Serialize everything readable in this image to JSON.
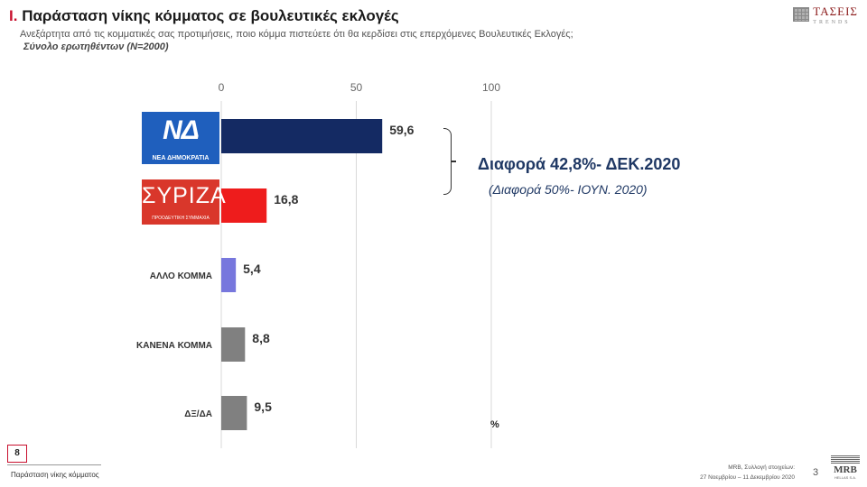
{
  "header": {
    "title_num": "I.",
    "title": "Παράσταση νίκης κόμματος σε βουλευτικές εκλογές",
    "subtitle": "Ανεξάρτητα από τις κομματικές σας προτιμήσεις, ποιο κόμμα πιστεύετε ότι θα κερδίσει στις επερχόμενες Βουλευτικές Εκλογές;",
    "base": "Σύνολο ερωτηθέντων (N=2000)"
  },
  "brand": {
    "name": "ΤΑΣΕΙΣ",
    "sub": "TRENDS"
  },
  "logos": {
    "nd_big": "ΝΔ",
    "nd_small": "ΝΕΑ ΔΗΜΟΚΡΑΤΙΑ",
    "syriza_big": "ΣΥΡΙΖΑ",
    "syriza_small": "ΠΡΟΟΔΕΥΤΙΚΗ ΣΥΜΜΑΧΙΑ"
  },
  "chart_data": {
    "type": "bar",
    "orientation": "horizontal",
    "categories": [
      "ΝΕΑ ΔΗΜΟΚΡΑΤΙΑ",
      "ΣΥΡΙΖΑ",
      "ΑΛΛΟ ΚΟΜΜΑ",
      "ΚΑΝΕΝΑ ΚΟΜΜΑ",
      "ΔΞ/ΔΑ"
    ],
    "category_labels": [
      "",
      "",
      "ΑΛΛΟ ΚΟΜΜΑ",
      "ΚΑΝΕΝΑ ΚΟΜΜΑ",
      "ΔΞ/ΔΑ"
    ],
    "values": [
      59.6,
      16.8,
      5.4,
      8.8,
      9.5
    ],
    "value_labels": [
      "59,6",
      "16,8",
      "5,4",
      "8,8",
      "9,5"
    ],
    "colors": [
      "#142a63",
      "#ee1c1c",
      "#7777dd",
      "#808080",
      "#808080"
    ],
    "xlim": [
      0,
      100
    ],
    "xticks": [
      0,
      50,
      100
    ],
    "tick_labels": [
      "0",
      "50",
      "100"
    ],
    "unit": "%",
    "grid": true
  },
  "annotation": {
    "diff_main": "Διαφορά 42,8%- ΔΕΚ.2020",
    "diff_prev": "(Διαφορά 50%- ΙΟΥΝ. 2020)"
  },
  "footer": {
    "page_box": "8",
    "section": "Παράσταση νίκης κόμματος",
    "source_line1": "MRB, Συλλογή στοιχείων:",
    "source_line2": "27 Νοεμβρίου – 11 Δεκεμβρίου 2020",
    "page_num": "3",
    "mrb": "MRB",
    "mrb_sub": "HELLAS S.A."
  }
}
